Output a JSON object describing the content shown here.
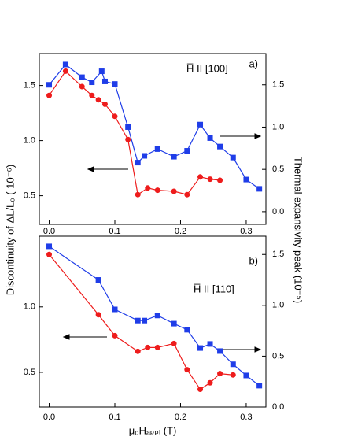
{
  "chart_data": [
    {
      "type": "scatter",
      "title": "a)",
      "annotation": "H̅ II [100]",
      "ylabel": "Discontinuity of ΔL/L₀ ( 10⁻⁶)",
      "y2label": "Thermal expansivity peak (10⁻⁵)",
      "xlim": [
        -0.015,
        0.33
      ],
      "ylim": [
        0.24,
        1.79
      ],
      "y2lim": [
        -0.15,
        1.87
      ],
      "xticks": [
        {
          "value": 0,
          "label": "0.0"
        },
        {
          "value": 0.1,
          "label": "0.1"
        },
        {
          "value": 0.2,
          "label": "0.2"
        },
        {
          "value": 0.3,
          "label": "0.3"
        }
      ],
      "yticks": [
        0.5,
        {
          "value": 1,
          "label": "1.0"
        },
        1.5
      ],
      "y2ticks": [
        {
          "value": 0,
          "label": "0.0"
        },
        0.5,
        {
          "value": 1,
          "label": "1.0"
        },
        1.5
      ],
      "series": [
        {
          "color": "#ee1c1c",
          "marker": "circle",
          "x": [
            0.0,
            0.025,
            0.05,
            0.065,
            0.075,
            0.085,
            0.1,
            0.12,
            0.135,
            0.15,
            0.165,
            0.19,
            0.21,
            0.23,
            0.245,
            0.26
          ],
          "values": [
            1.41,
            1.63,
            1.49,
            1.41,
            1.37,
            1.33,
            1.22,
            1.01,
            0.51,
            0.57,
            0.55,
            0.54,
            0.51,
            0.67,
            0.65,
            0.64
          ]
        },
        {
          "color": "#1f3de8",
          "marker": "square",
          "axis": "y2",
          "x": [
            0.0,
            0.025,
            0.05,
            0.065,
            0.08,
            0.085,
            0.1,
            0.12,
            0.135,
            0.145,
            0.165,
            0.19,
            0.21,
            0.23,
            0.245,
            0.26,
            0.28,
            0.3,
            0.32
          ],
          "values": [
            1.5,
            1.74,
            1.59,
            1.53,
            1.66,
            1.54,
            1.51,
            1.0,
            0.58,
            0.66,
            0.74,
            0.65,
            0.72,
            1.03,
            0.87,
            0.77,
            0.64,
            0.38,
            0.27
          ]
        }
      ]
    },
    {
      "type": "scatter",
      "title": "b)",
      "annotation": "H̅ II [110]",
      "xlabel": "μ₀Hₐₚₚₗ (T)",
      "xlim": [
        -0.015,
        0.33
      ],
      "ylim": [
        0.235,
        1.54
      ],
      "y2lim": [
        0,
        1.68
      ],
      "xticks": [
        {
          "value": 0,
          "label": "0.0"
        },
        {
          "value": 0.1,
          "label": "0.1"
        },
        {
          "value": 0.2,
          "label": "0.2"
        },
        {
          "value": 0.3,
          "label": "0.3"
        }
      ],
      "yticks": [
        0.5,
        {
          "value": 1,
          "label": "1.0"
        }
      ],
      "y2ticks": [
        {
          "value": 0,
          "label": "0.0"
        },
        0.5,
        {
          "value": 1,
          "label": "1.0"
        },
        1.5
      ],
      "series": [
        {
          "color": "#ee1c1c",
          "marker": "circle",
          "x": [
            0.0,
            0.075,
            0.1,
            0.135,
            0.15,
            0.165,
            0.19,
            0.21,
            0.23,
            0.245,
            0.26,
            0.28
          ],
          "values": [
            1.4,
            0.94,
            0.78,
            0.66,
            0.69,
            0.69,
            0.72,
            0.52,
            0.37,
            0.42,
            0.49,
            0.48
          ]
        },
        {
          "color": "#1f3de8",
          "marker": "square",
          "axis": "y2",
          "x": [
            0.0,
            0.075,
            0.1,
            0.135,
            0.145,
            0.165,
            0.19,
            0.21,
            0.23,
            0.245,
            0.26,
            0.28,
            0.3,
            0.32
          ],
          "values": [
            1.58,
            1.25,
            0.96,
            0.85,
            0.85,
            0.9,
            0.82,
            0.76,
            0.58,
            0.62,
            0.55,
            0.42,
            0.31,
            0.21
          ]
        }
      ]
    }
  ]
}
